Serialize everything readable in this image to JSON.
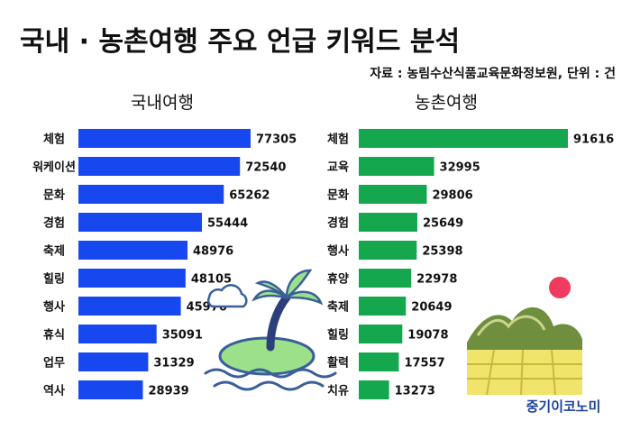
{
  "title": "국내 · 농촌여행 주요 언급 키워드 분석",
  "source": "자료 : 농림수산식품교육문화정보원, 단위 : 건",
  "brand": "중기이코노미",
  "colors": {
    "domestic_bar": "#1747ee",
    "rural_bar": "#14a74e"
  },
  "chart_data": [
    {
      "type": "bar",
      "orientation": "horizontal",
      "title": "국내여행",
      "categories": [
        "체험",
        "워케이션",
        "문화",
        "경험",
        "축제",
        "힐링",
        "행사",
        "휴식",
        "업무",
        "역사"
      ],
      "values": [
        77305,
        72540,
        65262,
        55444,
        48976,
        48105,
        45976,
        35091,
        31329,
        28939
      ],
      "labels": [
        "77305",
        "72540",
        "65262",
        "55444",
        "48976",
        "48105",
        "45976",
        "35091",
        "31329",
        "28939"
      ],
      "xlim": [
        0,
        77305
      ]
    },
    {
      "type": "bar",
      "orientation": "horizontal",
      "title": "농촌여행",
      "categories": [
        "체험",
        "교육",
        "문화",
        "경험",
        "행사",
        "휴양",
        "축제",
        "힐링",
        "활력",
        "치유"
      ],
      "values": [
        91616,
        32995,
        29806,
        25649,
        25398,
        22978,
        20649,
        19078,
        17557,
        13273
      ],
      "labels": [
        "91616",
        "32995",
        "29806",
        "25649",
        "25398",
        "22978",
        "20649",
        "19078",
        "17557",
        "13273"
      ],
      "xlim": [
        0,
        91616
      ]
    }
  ]
}
